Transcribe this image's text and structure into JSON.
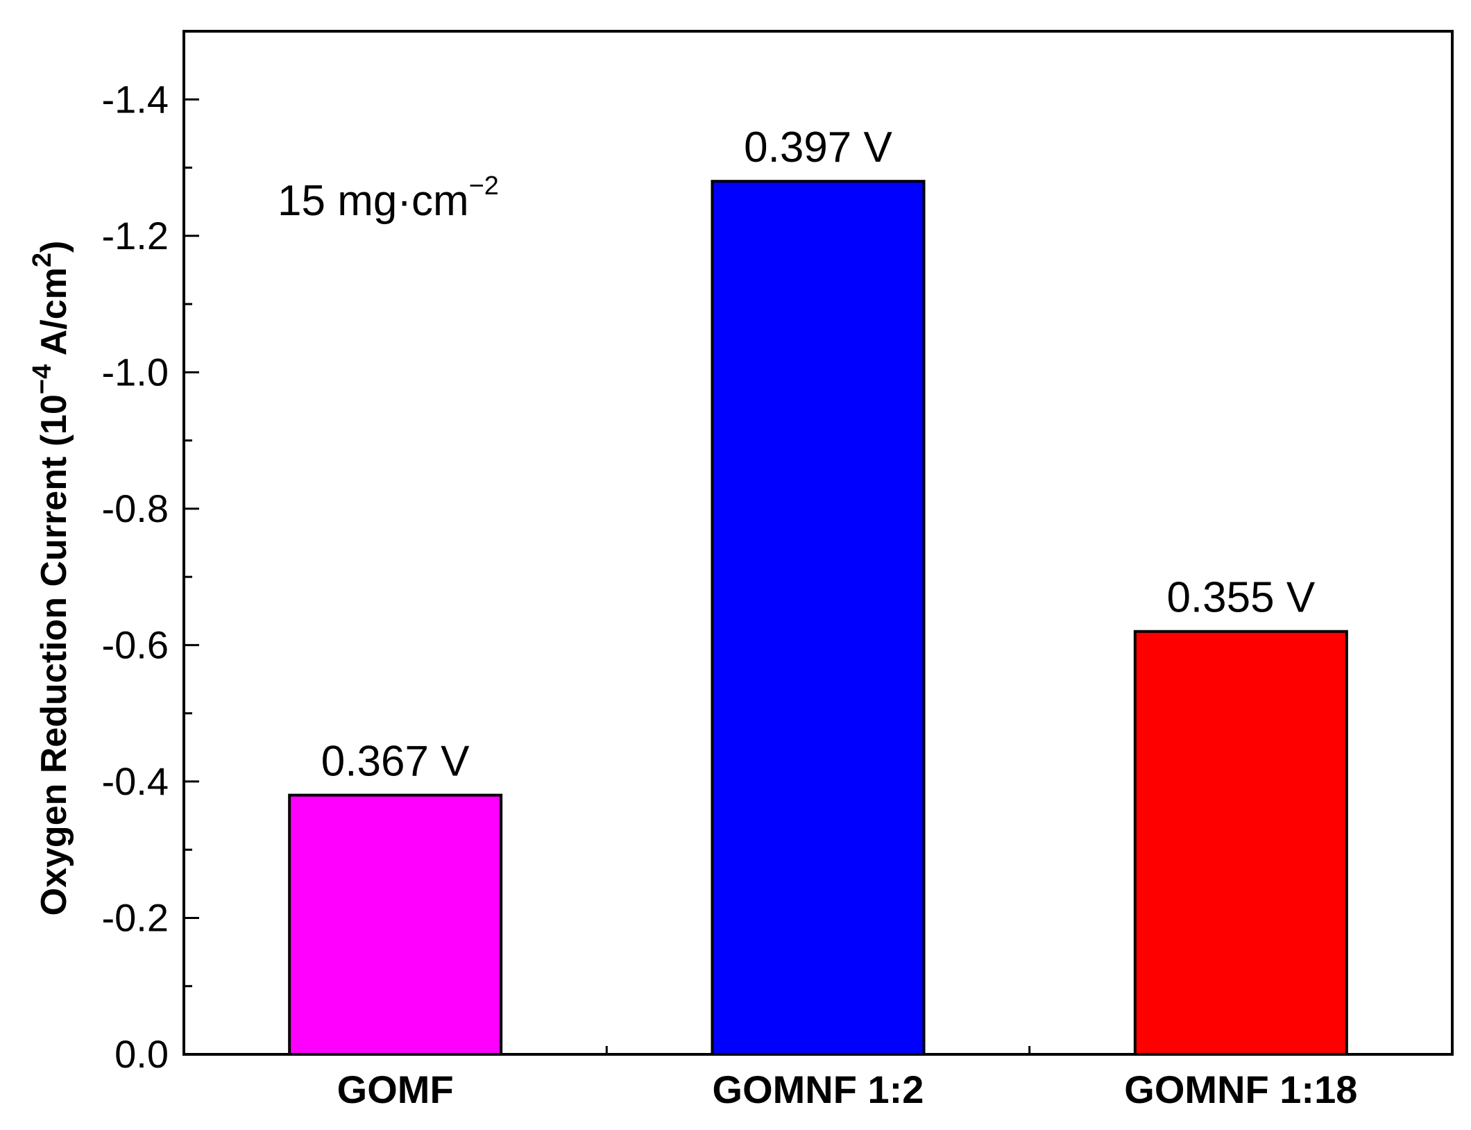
{
  "chart_data": {
    "type": "bar",
    "categories": [
      "GOMF",
      "GOMNF 1:2",
      "GOMNF 1:18"
    ],
    "values": [
      -0.38,
      -1.28,
      -0.62
    ],
    "bar_labels": [
      "0.367 V",
      "0.397 V",
      "0.355 V"
    ],
    "colors": [
      "#ff00ff",
      "#0000ff",
      "#ff0000"
    ],
    "ylabel": {
      "main": "Oxygen Reduction Current (10",
      "exp": "−4",
      "unit": " A/cm",
      "unit_exp": "2",
      "close": ")"
    },
    "annotation": {
      "base": "15 mg·cm",
      "exp": "−2"
    },
    "ylim": [
      0.0,
      -1.5
    ],
    "y_inverted": true,
    "yticks": [
      0.0,
      -0.2,
      -0.4,
      -0.6,
      -0.8,
      -1.0,
      -1.2,
      -1.4
    ],
    "ytick_labels": [
      "0.0",
      "-0.2",
      "-0.4",
      "-0.6",
      "-0.8",
      "-1.0",
      "-1.2",
      "-1.4"
    ],
    "grid": false,
    "legend": "none"
  }
}
